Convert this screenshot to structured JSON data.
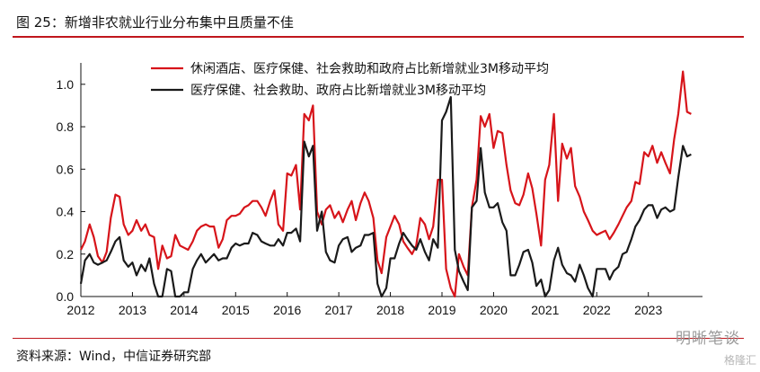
{
  "figure": {
    "title": "图 25：新增非农就业行业分布集中且质量不佳",
    "source": "资料来源：Wind，中信证券研究部",
    "watermark": "明晰笔谈",
    "watermark_sub": "格隆汇"
  },
  "colors": {
    "accent": "#c0161c",
    "series_red": "#d7141a",
    "series_black": "#1a1a1a"
  },
  "chart_data": {
    "type": "line",
    "title": "",
    "xlabel": "",
    "ylabel": "",
    "xlim": [
      2012,
      2024.05
    ],
    "ylim": [
      0,
      1.05
    ],
    "x_ticks": [
      "2012",
      "2013",
      "2014",
      "2015",
      "2016",
      "2017",
      "2018",
      "2019",
      "2020",
      "2021",
      "2022",
      "2023"
    ],
    "y_ticks": [
      "0.0",
      "0.2",
      "0.4",
      "0.6",
      "0.8",
      "1.0"
    ],
    "grid": false,
    "legend_position": "top-center",
    "series": [
      {
        "name": "休闲酒店、医疗保健、社会救助和政府占比新增就业3M移动平均",
        "color": "#d7141a",
        "points": [
          [
            2012.0,
            0.22
          ],
          [
            2012.08,
            0.26
          ],
          [
            2012.17,
            0.34
          ],
          [
            2012.25,
            0.28
          ],
          [
            2012.33,
            0.19
          ],
          [
            2012.42,
            0.16
          ],
          [
            2012.5,
            0.21
          ],
          [
            2012.58,
            0.37
          ],
          [
            2012.67,
            0.48
          ],
          [
            2012.75,
            0.47
          ],
          [
            2012.83,
            0.34
          ],
          [
            2012.92,
            0.29
          ],
          [
            2013.0,
            0.31
          ],
          [
            2013.08,
            0.36
          ],
          [
            2013.17,
            0.31
          ],
          [
            2013.25,
            0.34
          ],
          [
            2013.33,
            0.29
          ],
          [
            2013.42,
            0.28
          ],
          [
            2013.5,
            0.13
          ],
          [
            2013.58,
            0.24
          ],
          [
            2013.67,
            0.18
          ],
          [
            2013.75,
            0.19
          ],
          [
            2013.83,
            0.29
          ],
          [
            2013.92,
            0.24
          ],
          [
            2014.0,
            0.23
          ],
          [
            2014.08,
            0.22
          ],
          [
            2014.17,
            0.26
          ],
          [
            2014.25,
            0.31
          ],
          [
            2014.33,
            0.33
          ],
          [
            2014.42,
            0.34
          ],
          [
            2014.5,
            0.33
          ],
          [
            2014.58,
            0.33
          ],
          [
            2014.67,
            0.23
          ],
          [
            2014.75,
            0.27
          ],
          [
            2014.83,
            0.36
          ],
          [
            2014.92,
            0.38
          ],
          [
            2015.0,
            0.38
          ],
          [
            2015.08,
            0.39
          ],
          [
            2015.17,
            0.42
          ],
          [
            2015.25,
            0.43
          ],
          [
            2015.33,
            0.45
          ],
          [
            2015.42,
            0.45
          ],
          [
            2015.5,
            0.42
          ],
          [
            2015.58,
            0.38
          ],
          [
            2015.67,
            0.45
          ],
          [
            2015.75,
            0.5
          ],
          [
            2015.83,
            0.34
          ],
          [
            2015.92,
            0.31
          ],
          [
            2016.0,
            0.58
          ],
          [
            2016.08,
            0.57
          ],
          [
            2016.17,
            0.62
          ],
          [
            2016.25,
            0.41
          ],
          [
            2016.33,
            0.86
          ],
          [
            2016.42,
            0.83
          ],
          [
            2016.5,
            0.9
          ],
          [
            2016.58,
            0.4
          ],
          [
            2016.67,
            0.34
          ],
          [
            2016.75,
            0.41
          ],
          [
            2016.83,
            0.43
          ],
          [
            2016.92,
            0.37
          ],
          [
            2017.0,
            0.4
          ],
          [
            2017.08,
            0.35
          ],
          [
            2017.17,
            0.41
          ],
          [
            2017.25,
            0.45
          ],
          [
            2017.33,
            0.36
          ],
          [
            2017.42,
            0.44
          ],
          [
            2017.5,
            0.49
          ],
          [
            2017.58,
            0.45
          ],
          [
            2017.67,
            0.37
          ],
          [
            2017.75,
            0.17
          ],
          [
            2017.83,
            0.11
          ],
          [
            2017.92,
            0.28
          ],
          [
            2018.0,
            0.33
          ],
          [
            2018.08,
            0.38
          ],
          [
            2018.17,
            0.34
          ],
          [
            2018.25,
            0.26
          ],
          [
            2018.33,
            0.23
          ],
          [
            2018.42,
            0.2
          ],
          [
            2018.5,
            0.24
          ],
          [
            2018.58,
            0.37
          ],
          [
            2018.67,
            0.34
          ],
          [
            2018.75,
            0.27
          ],
          [
            2018.83,
            0.33
          ],
          [
            2018.92,
            0.55
          ],
          [
            2019.0,
            0.55
          ],
          [
            2019.08,
            0.13
          ],
          [
            2019.17,
            0.04
          ],
          [
            2019.25,
            0.0
          ],
          [
            2019.33,
            0.2
          ],
          [
            2019.42,
            0.14
          ],
          [
            2019.5,
            0.1
          ],
          [
            2019.58,
            0.42
          ],
          [
            2019.67,
            0.55
          ],
          [
            2019.75,
            0.85
          ],
          [
            2019.83,
            0.8
          ],
          [
            2019.92,
            0.86
          ],
          [
            2020.0,
            0.7
          ],
          [
            2020.08,
            0.78
          ],
          [
            2020.17,
            0.77
          ],
          [
            2020.25,
            0.62
          ],
          [
            2020.33,
            0.5
          ],
          [
            2020.42,
            0.44
          ],
          [
            2020.5,
            0.43
          ],
          [
            2020.58,
            0.48
          ],
          [
            2020.67,
            0.58
          ],
          [
            2020.75,
            0.51
          ],
          [
            2020.83,
            0.39
          ],
          [
            2020.92,
            0.24
          ],
          [
            2021.0,
            0.55
          ],
          [
            2021.08,
            0.62
          ],
          [
            2021.17,
            0.86
          ],
          [
            2021.25,
            0.45
          ],
          [
            2021.33,
            0.72
          ],
          [
            2021.42,
            0.65
          ],
          [
            2021.5,
            0.7
          ],
          [
            2021.58,
            0.52
          ],
          [
            2021.67,
            0.47
          ],
          [
            2021.75,
            0.4
          ],
          [
            2021.83,
            0.36
          ],
          [
            2021.92,
            0.31
          ],
          [
            2022.0,
            0.29
          ],
          [
            2022.08,
            0.3
          ],
          [
            2022.17,
            0.31
          ],
          [
            2022.25,
            0.27
          ],
          [
            2022.33,
            0.3
          ],
          [
            2022.42,
            0.34
          ],
          [
            2022.5,
            0.38
          ],
          [
            2022.58,
            0.42
          ],
          [
            2022.67,
            0.45
          ],
          [
            2022.75,
            0.54
          ],
          [
            2022.83,
            0.53
          ],
          [
            2022.92,
            0.68
          ],
          [
            2023.0,
            0.66
          ],
          [
            2023.08,
            0.71
          ],
          [
            2023.17,
            0.63
          ],
          [
            2023.25,
            0.68
          ],
          [
            2023.33,
            0.63
          ],
          [
            2023.42,
            0.58
          ],
          [
            2023.5,
            0.74
          ],
          [
            2023.58,
            0.86
          ],
          [
            2023.67,
            1.06
          ],
          [
            2023.75,
            0.87
          ],
          [
            2023.83,
            0.86
          ]
        ]
      },
      {
        "name": "医疗保健、社会救助、政府占比新增就业3M移动平均",
        "color": "#1a1a1a",
        "points": [
          [
            2012.0,
            0.06
          ],
          [
            2012.08,
            0.17
          ],
          [
            2012.17,
            0.2
          ],
          [
            2012.25,
            0.16
          ],
          [
            2012.33,
            0.15
          ],
          [
            2012.42,
            0.16
          ],
          [
            2012.5,
            0.17
          ],
          [
            2012.58,
            0.21
          ],
          [
            2012.67,
            0.26
          ],
          [
            2012.75,
            0.28
          ],
          [
            2012.83,
            0.17
          ],
          [
            2012.92,
            0.14
          ],
          [
            2013.0,
            0.16
          ],
          [
            2013.08,
            0.1
          ],
          [
            2013.17,
            0.15
          ],
          [
            2013.25,
            0.12
          ],
          [
            2013.33,
            0.18
          ],
          [
            2013.42,
            0.06
          ],
          [
            2013.5,
            0.0
          ],
          [
            2013.58,
            0.0
          ],
          [
            2013.67,
            0.13
          ],
          [
            2013.75,
            0.12
          ],
          [
            2013.83,
            0.0
          ],
          [
            2013.92,
            0.0
          ],
          [
            2014.0,
            0.02
          ],
          [
            2014.08,
            0.02
          ],
          [
            2014.17,
            0.13
          ],
          [
            2014.25,
            0.17
          ],
          [
            2014.33,
            0.2
          ],
          [
            2014.42,
            0.16
          ],
          [
            2014.5,
            0.18
          ],
          [
            2014.58,
            0.2
          ],
          [
            2014.67,
            0.17
          ],
          [
            2014.75,
            0.18
          ],
          [
            2014.83,
            0.18
          ],
          [
            2014.92,
            0.23
          ],
          [
            2015.0,
            0.25
          ],
          [
            2015.08,
            0.24
          ],
          [
            2015.17,
            0.25
          ],
          [
            2015.25,
            0.25
          ],
          [
            2015.33,
            0.3
          ],
          [
            2015.42,
            0.29
          ],
          [
            2015.5,
            0.26
          ],
          [
            2015.58,
            0.25
          ],
          [
            2015.67,
            0.24
          ],
          [
            2015.75,
            0.24
          ],
          [
            2015.83,
            0.27
          ],
          [
            2015.92,
            0.24
          ],
          [
            2016.0,
            0.3
          ],
          [
            2016.08,
            0.3
          ],
          [
            2016.17,
            0.32
          ],
          [
            2016.25,
            0.26
          ],
          [
            2016.33,
            0.73
          ],
          [
            2016.42,
            0.66
          ],
          [
            2016.5,
            0.71
          ],
          [
            2016.58,
            0.31
          ],
          [
            2016.67,
            0.4
          ],
          [
            2016.75,
            0.21
          ],
          [
            2016.83,
            0.17
          ],
          [
            2016.92,
            0.16
          ],
          [
            2017.0,
            0.24
          ],
          [
            2017.08,
            0.27
          ],
          [
            2017.17,
            0.28
          ],
          [
            2017.25,
            0.21
          ],
          [
            2017.33,
            0.23
          ],
          [
            2017.42,
            0.24
          ],
          [
            2017.5,
            0.29
          ],
          [
            2017.58,
            0.29
          ],
          [
            2017.67,
            0.3
          ],
          [
            2017.75,
            0.06
          ],
          [
            2017.83,
            0.0
          ],
          [
            2017.92,
            0.04
          ],
          [
            2018.0,
            0.18
          ],
          [
            2018.08,
            0.18
          ],
          [
            2018.17,
            0.25
          ],
          [
            2018.25,
            0.3
          ],
          [
            2018.33,
            0.27
          ],
          [
            2018.42,
            0.24
          ],
          [
            2018.5,
            0.22
          ],
          [
            2018.58,
            0.27
          ],
          [
            2018.67,
            0.21
          ],
          [
            2018.75,
            0.17
          ],
          [
            2018.83,
            0.27
          ],
          [
            2018.92,
            0.23
          ],
          [
            2019.0,
            0.83
          ],
          [
            2019.08,
            0.87
          ],
          [
            2019.17,
            0.94
          ],
          [
            2019.25,
            0.22
          ],
          [
            2019.33,
            0.12
          ],
          [
            2019.42,
            0.07
          ],
          [
            2019.5,
            0.03
          ],
          [
            2019.58,
            0.42
          ],
          [
            2019.67,
            0.45
          ],
          [
            2019.75,
            0.7
          ],
          [
            2019.83,
            0.49
          ],
          [
            2019.92,
            0.42
          ],
          [
            2020.0,
            0.42
          ],
          [
            2020.08,
            0.44
          ],
          [
            2020.17,
            0.35
          ],
          [
            2020.25,
            0.31
          ],
          [
            2020.33,
            0.1
          ],
          [
            2020.42,
            0.1
          ],
          [
            2020.5,
            0.15
          ],
          [
            2020.58,
            0.21
          ],
          [
            2020.67,
            0.22
          ],
          [
            2020.75,
            0.16
          ],
          [
            2020.83,
            0.05
          ],
          [
            2020.92,
            0.08
          ],
          [
            2021.0,
            0.0
          ],
          [
            2021.08,
            0.03
          ],
          [
            2021.17,
            0.17
          ],
          [
            2021.25,
            0.23
          ],
          [
            2021.33,
            0.15
          ],
          [
            2021.42,
            0.11
          ],
          [
            2021.5,
            0.1
          ],
          [
            2021.58,
            0.07
          ],
          [
            2021.67,
            0.15
          ],
          [
            2021.75,
            0.1
          ],
          [
            2021.83,
            0.04
          ],
          [
            2021.92,
            0.0
          ],
          [
            2022.0,
            0.13
          ],
          [
            2022.08,
            0.13
          ],
          [
            2022.17,
            0.13
          ],
          [
            2022.25,
            0.08
          ],
          [
            2022.33,
            0.12
          ],
          [
            2022.42,
            0.14
          ],
          [
            2022.5,
            0.2
          ],
          [
            2022.58,
            0.21
          ],
          [
            2022.67,
            0.27
          ],
          [
            2022.75,
            0.33
          ],
          [
            2022.83,
            0.36
          ],
          [
            2022.92,
            0.41
          ],
          [
            2023.0,
            0.43
          ],
          [
            2023.08,
            0.43
          ],
          [
            2023.17,
            0.37
          ],
          [
            2023.25,
            0.41
          ],
          [
            2023.33,
            0.42
          ],
          [
            2023.42,
            0.4
          ],
          [
            2023.5,
            0.41
          ],
          [
            2023.58,
            0.56
          ],
          [
            2023.67,
            0.71
          ],
          [
            2023.75,
            0.66
          ],
          [
            2023.83,
            0.67
          ]
        ]
      }
    ]
  }
}
